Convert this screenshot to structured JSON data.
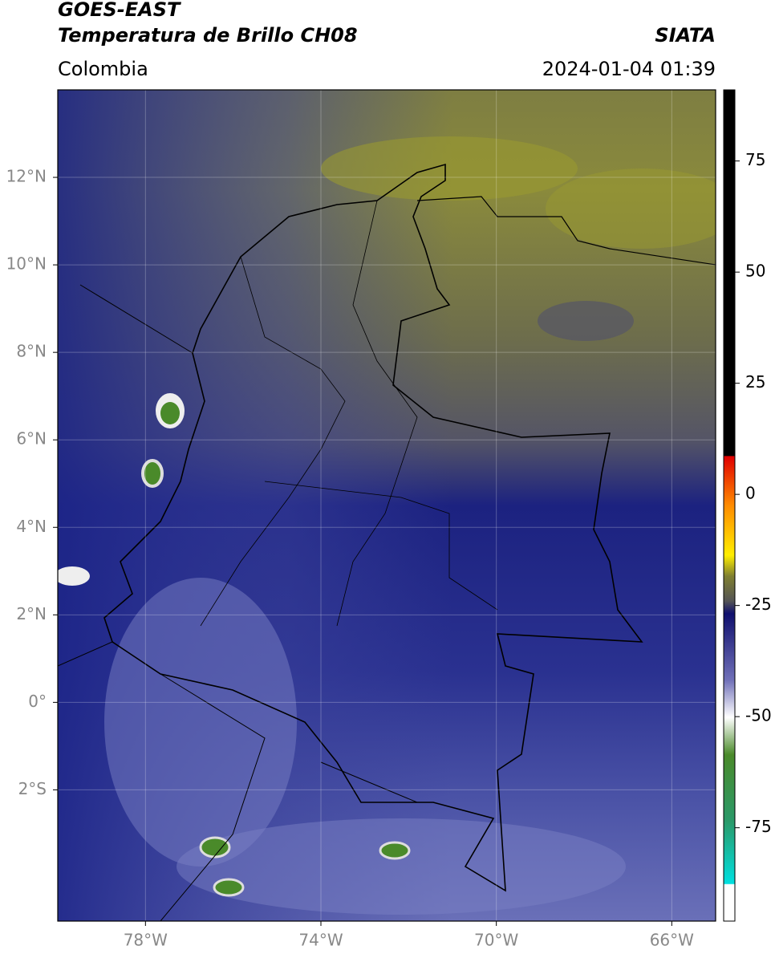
{
  "header": {
    "satellite": "GOES-EAST",
    "product": "Temperatura de Brillo CH08",
    "source": "SIATA",
    "region": "Colombia",
    "datetime": "2024-01-04 01:39"
  },
  "map": {
    "xlim": [
      -80,
      -65
    ],
    "ylim": [
      -5,
      14
    ],
    "xticks": [
      {
        "value": -78,
        "label": "78°W"
      },
      {
        "value": -74,
        "label": "74°W"
      },
      {
        "value": -70,
        "label": "70°W"
      },
      {
        "value": -66,
        "label": "66°W"
      }
    ],
    "yticks": [
      {
        "value": 12,
        "label": "12°N"
      },
      {
        "value": 10,
        "label": "10°N"
      },
      {
        "value": 8,
        "label": "8°N"
      },
      {
        "value": 6,
        "label": "6°N"
      },
      {
        "value": 4,
        "label": "4°N"
      },
      {
        "value": 2,
        "label": "2°N"
      },
      {
        "value": 0,
        "label": "0°"
      },
      {
        "value": -2,
        "label": "2°S"
      }
    ]
  },
  "colorbar": {
    "lim": [
      -96,
      91
    ],
    "ticks": [
      75,
      50,
      25,
      0,
      -25,
      -50,
      -75
    ]
  }
}
